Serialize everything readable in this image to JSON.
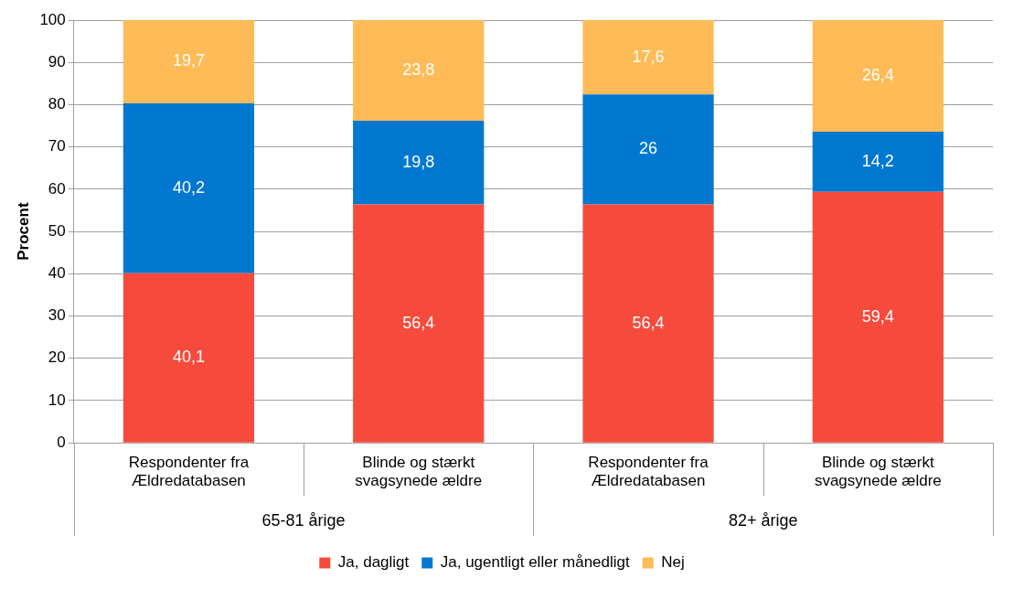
{
  "chart_data": {
    "type": "bar",
    "stacked": true,
    "ylabel": "Procent",
    "categories": [
      "Respondenter fra Ældredatabasen",
      "Blinde og stærkt svagsynede ældre",
      "Respondenter fra Ældredatabasen",
      "Blinde og stærkt svagsynede ældre"
    ],
    "series": [
      {
        "name": "Ja, dagligt",
        "color": "#f64b3c",
        "values": [
          40.1,
          56.4,
          56.4,
          59.4
        ],
        "value_labels": [
          "40,1",
          "56,4",
          "56,4",
          "59,4"
        ]
      },
      {
        "name": "Ja, ugentligt eller månedligt",
        "color": "#0078d0",
        "values": [
          40.2,
          19.8,
          26,
          14.2
        ],
        "value_labels": [
          "40,2",
          "19,8",
          "26",
          "14,2"
        ]
      },
      {
        "name": "Nej",
        "color": "#ffbb57",
        "values": [
          19.7,
          23.8,
          17.6,
          26.4
        ],
        "value_labels": [
          "19,7",
          "23,8",
          "17,6",
          "26,4"
        ]
      }
    ],
    "annotations": [
      "65-81 årige",
      "82+ årige"
    ],
    "ylim": [
      0,
      100
    ],
    "yticks": [
      0,
      10,
      20,
      30,
      40,
      50,
      60,
      70,
      80,
      90,
      100
    ],
    "grid": "y",
    "legend": "bottom"
  }
}
